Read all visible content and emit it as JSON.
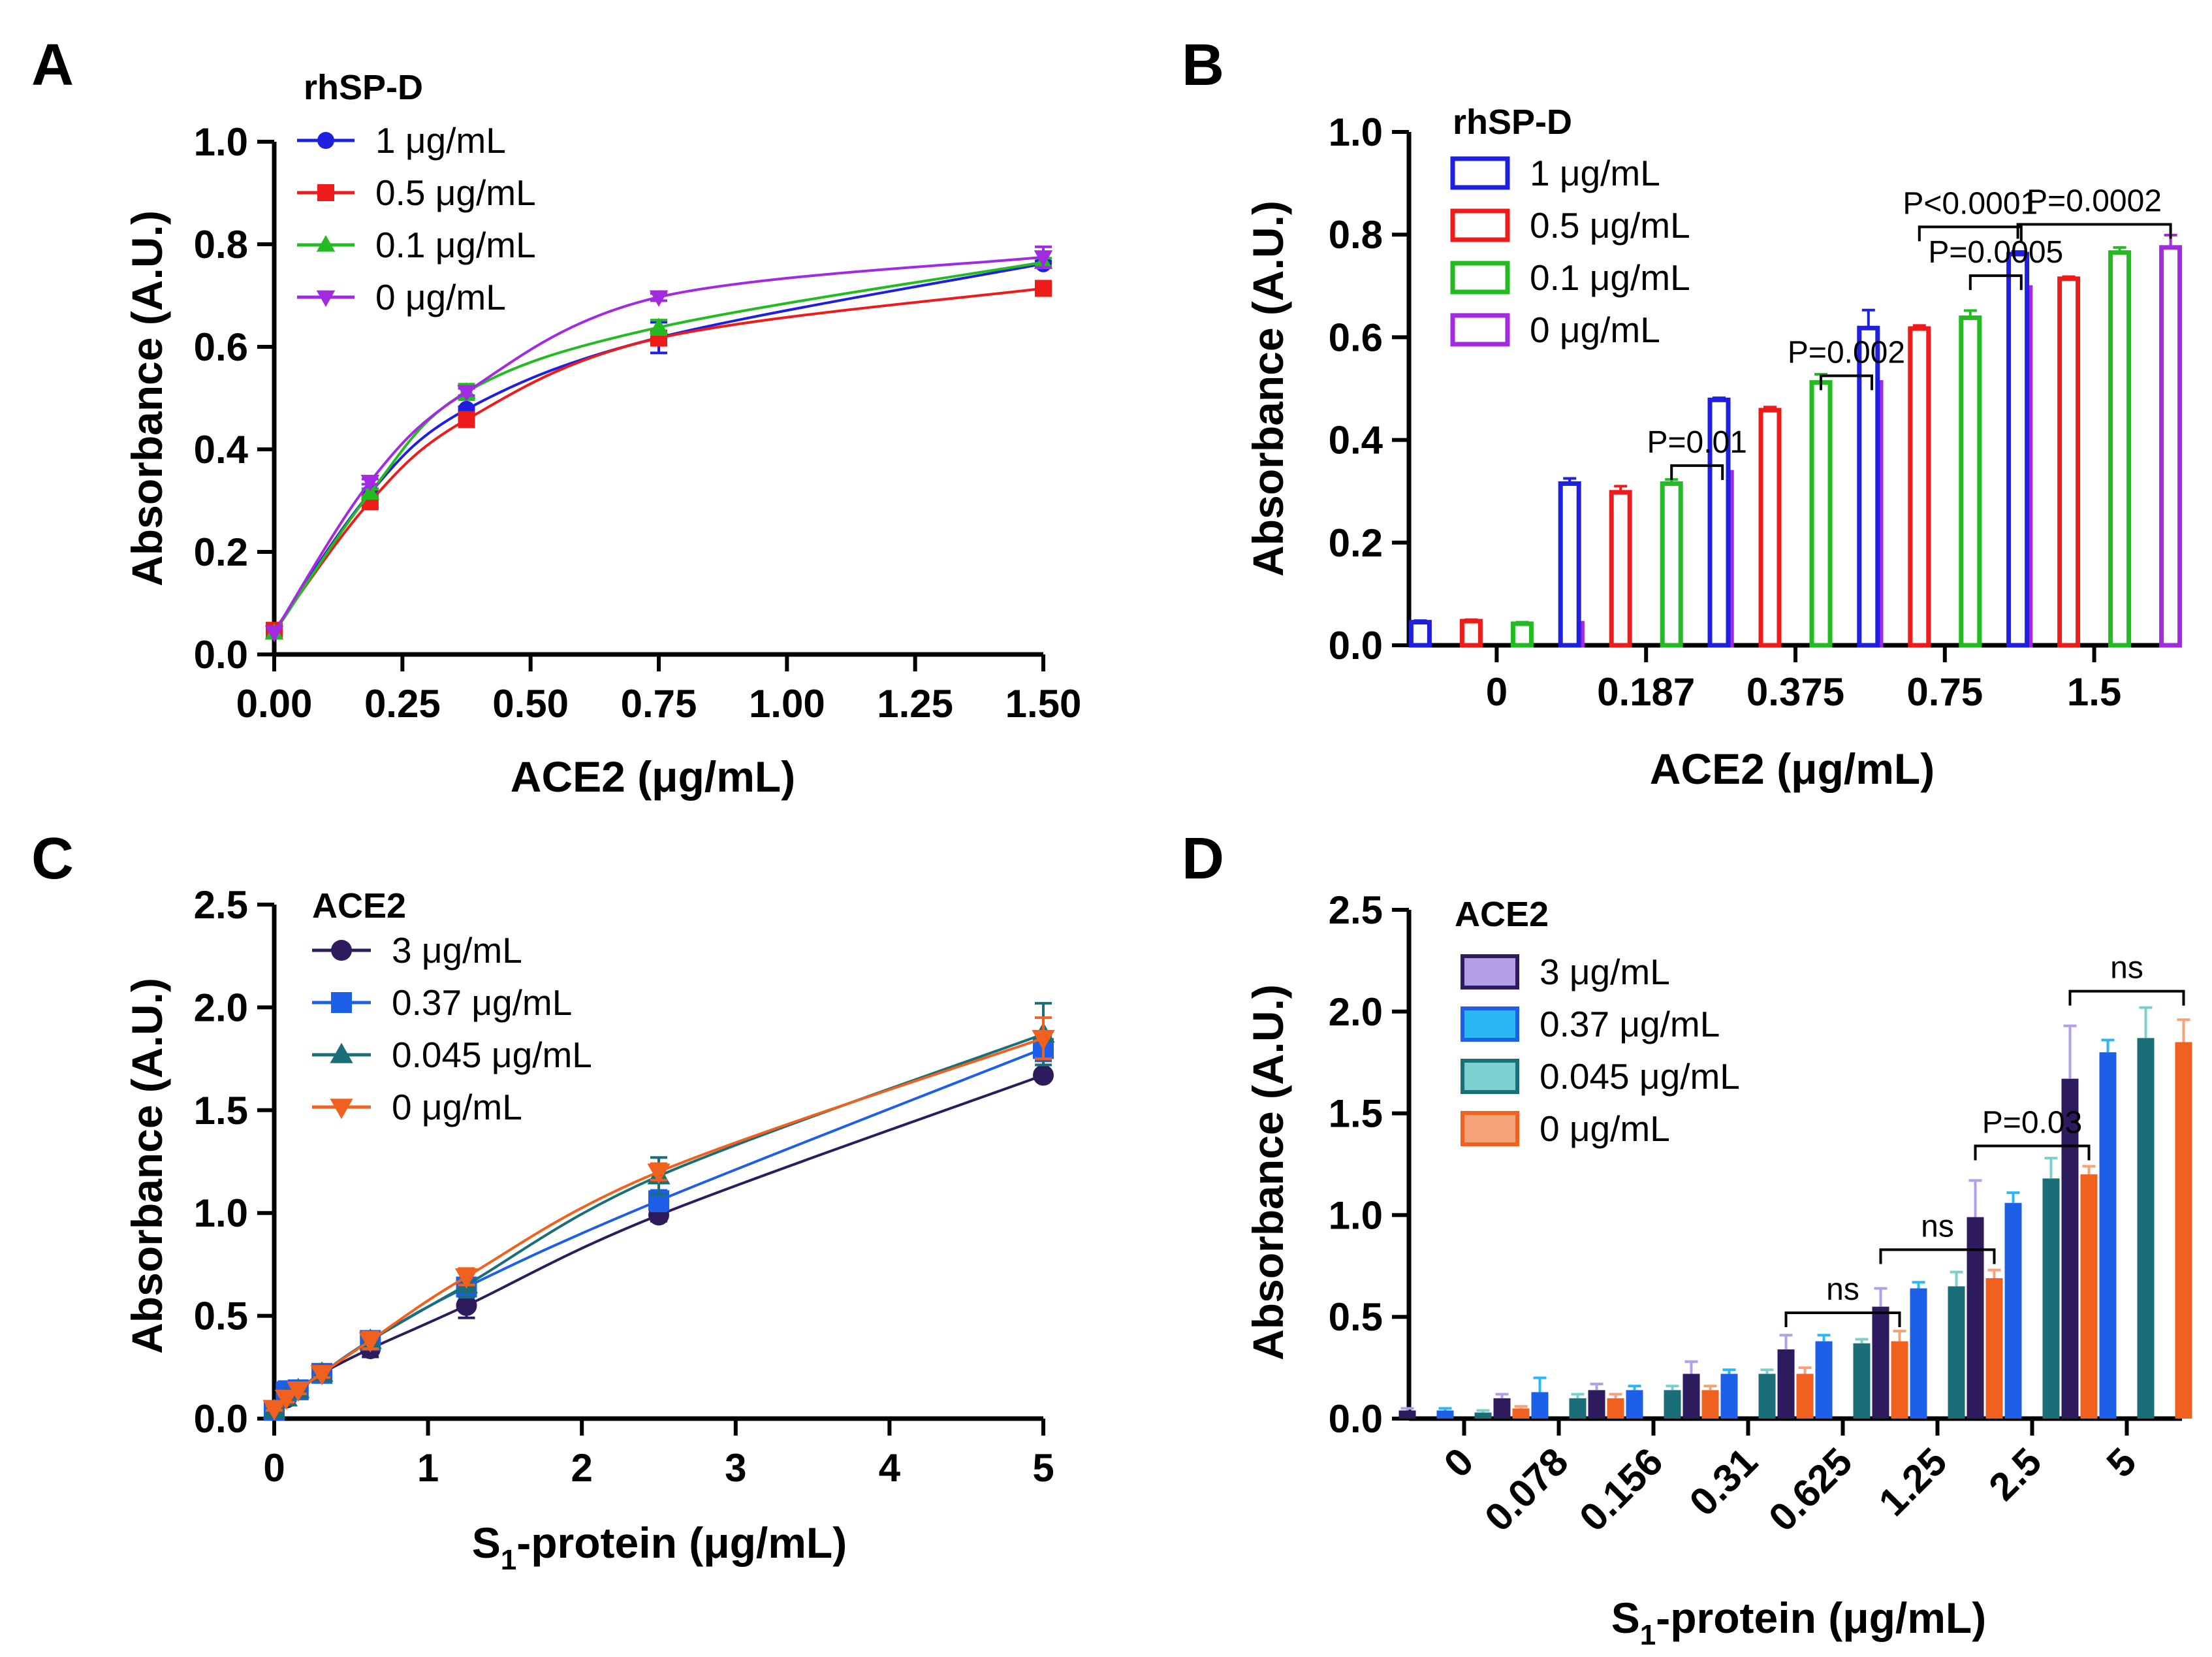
{
  "panels": {
    "A": {
      "label": "A",
      "legend_title": "rhSP-D"
    },
    "B": {
      "label": "B",
      "legend_title": "rhSP-D"
    },
    "C": {
      "label": "C",
      "legend_title": "ACE2"
    },
    "D": {
      "label": "D",
      "legend_title": "ACE2"
    }
  },
  "colors": {
    "A": [
      "#1f1fe0",
      "#ee1b1b",
      "#22bb22",
      "#a22ae0"
    ],
    "C": [
      "#2d1b5e",
      "#1e5fe8",
      "#1a6e78",
      "#f0601e"
    ],
    "D_dark": [
      "#2d1b5e",
      "#1e5fe8",
      "#1a6e78",
      "#f0601e"
    ],
    "D_light": [
      "#b39ee8",
      "#2ab8f5",
      "#7ccfcf",
      "#f5a27a"
    ]
  },
  "chart_data": [
    {
      "panel": "A",
      "type": "line",
      "xlabel": "ACE2 (μg/mL)",
      "ylabel": "Absorbance (A.U.)",
      "xlim": [
        0,
        1.5
      ],
      "ylim": [
        0,
        1.0
      ],
      "xticks": [
        "0.00",
        "0.25",
        "0.50",
        "0.75",
        "1.00",
        "1.25",
        "1.50"
      ],
      "yticks": [
        "0.0",
        "0.2",
        "0.4",
        "0.6",
        "0.8",
        "1.0"
      ],
      "x": [
        0,
        0.187,
        0.375,
        0.75,
        1.5
      ],
      "series": [
        {
          "name": "1 μg/mL",
          "marker": "circle",
          "values": [
            0.045,
            0.315,
            0.478,
            0.618,
            0.762
          ],
          "errors": [
            0.003,
            0.008,
            0.005,
            0.03,
            0.005
          ]
        },
        {
          "name": "0.5 μg/mL",
          "marker": "square",
          "values": [
            0.047,
            0.298,
            0.458,
            0.617,
            0.714
          ],
          "errors": [
            0.003,
            0.01,
            0.006,
            0.006,
            0.004
          ]
        },
        {
          "name": "0.1 μg/mL",
          "marker": "triangle-up",
          "values": [
            0.042,
            0.315,
            0.512,
            0.638,
            0.765
          ],
          "errors": [
            0.003,
            0.007,
            0.015,
            0.014,
            0.008
          ]
        },
        {
          "name": "0 μg/mL",
          "marker": "triangle-down",
          "values": [
            0.043,
            0.337,
            0.512,
            0.697,
            0.775
          ],
          "errors": [
            0.003,
            0.005,
            0.007,
            0.007,
            0.02
          ]
        }
      ]
    },
    {
      "panel": "B",
      "type": "bar",
      "xlabel": "ACE2 (μg/mL)",
      "ylabel": "Absorbance (A.U.)",
      "ylim": [
        0,
        1.0
      ],
      "yticks": [
        "0.0",
        "0.2",
        "0.4",
        "0.6",
        "0.8",
        "1.0"
      ],
      "categories": [
        "0",
        "0.187",
        "0.375",
        "0.75",
        "1.5"
      ],
      "series": [
        {
          "name": "1 μg/mL",
          "values": [
            0.045,
            0.315,
            0.478,
            0.618,
            0.762
          ],
          "errors": [
            0.003,
            0.01,
            0.004,
            0.035,
            0.005
          ]
        },
        {
          "name": "0.5 μg/mL",
          "values": [
            0.047,
            0.298,
            0.458,
            0.617,
            0.714
          ],
          "errors": [
            0.003,
            0.012,
            0.006,
            0.006,
            0.004
          ]
        },
        {
          "name": "0.1 μg/mL",
          "values": [
            0.042,
            0.315,
            0.512,
            0.638,
            0.765
          ],
          "errors": [
            0.003,
            0.008,
            0.016,
            0.014,
            0.01
          ]
        },
        {
          "name": "0 μg/mL",
          "values": [
            0.043,
            0.337,
            0.512,
            0.697,
            0.775
          ],
          "errors": [
            0.003,
            0.005,
            0.008,
            0.008,
            0.024
          ]
        }
      ],
      "annotations": [
        {
          "text": "P=0.01",
          "category": 1,
          "from": 2,
          "to": 3,
          "y": 0.35
        },
        {
          "text": "P=0.002",
          "category": 2,
          "from": 2,
          "to": 3,
          "y": 0.525
        },
        {
          "text": "P=0.0005",
          "category": 3,
          "from": 2,
          "to": 3,
          "y": 0.72
        },
        {
          "text": "P<0.0001",
          "category": 3,
          "from": 1,
          "to": 3,
          "y": 0.815
        },
        {
          "text": "P=0.0002",
          "category": 4,
          "from": 0,
          "to": 3,
          "y": 0.82
        }
      ]
    },
    {
      "panel": "C",
      "type": "line",
      "xlabel": "S1-protein (μg/mL)",
      "xlabel_main": "S",
      "xlabel_sub": "1",
      "xlabel_rest": "-protein (μg/mL)",
      "ylabel": "Absorbance (A.U.)",
      "xlim": [
        0,
        5
      ],
      "ylim": [
        0,
        2.5
      ],
      "xticks": [
        "0",
        "1",
        "2",
        "3",
        "4",
        "5"
      ],
      "yticks": [
        "0.0",
        "0.5",
        "1.0",
        "1.5",
        "2.0",
        "2.5"
      ],
      "x": [
        0,
        0.078,
        0.156,
        0.31,
        0.625,
        1.25,
        2.5,
        5
      ],
      "series": [
        {
          "name": "3 μg/mL",
          "marker": "circle",
          "values": [
            0.04,
            0.1,
            0.14,
            0.22,
            0.34,
            0.55,
            0.99,
            1.67
          ],
          "errors": [
            0.01,
            0.02,
            0.02,
            0.03,
            0.04,
            0.06,
            0.03,
            0.02
          ]
        },
        {
          "name": "0.37 μg/mL",
          "marker": "square",
          "values": [
            0.04,
            0.13,
            0.14,
            0.22,
            0.38,
            0.64,
            1.06,
            1.8
          ],
          "errors": [
            0.01,
            0.05,
            0.02,
            0.02,
            0.03,
            0.04,
            0.05,
            0.06
          ]
        },
        {
          "name": "0.045 μg/mL",
          "marker": "triangle-up",
          "values": [
            0.04,
            0.1,
            0.14,
            0.22,
            0.38,
            0.65,
            1.18,
            1.87
          ],
          "errors": [
            0.01,
            0.02,
            0.02,
            0.02,
            0.02,
            0.06,
            0.09,
            0.15
          ]
        },
        {
          "name": "0 μg/mL",
          "marker": "triangle-down",
          "values": [
            0.05,
            0.1,
            0.14,
            0.22,
            0.38,
            0.69,
            1.2,
            1.85
          ],
          "errors": [
            0.01,
            0.02,
            0.02,
            0.02,
            0.04,
            0.04,
            0.04,
            0.1
          ]
        }
      ]
    },
    {
      "panel": "D",
      "type": "bar",
      "xlabel": "S1-protein (μg/mL)",
      "xlabel_main": "S",
      "xlabel_sub": "1",
      "xlabel_rest": "-protein (μg/mL)",
      "ylabel": "Absorbance (A.U.)",
      "ylim": [
        0,
        2.5
      ],
      "yticks": [
        "0.0",
        "0.5",
        "1.0",
        "1.5",
        "2.0",
        "2.5"
      ],
      "categories": [
        "0",
        "0.078",
        "0.156",
        "0.31",
        "0.625",
        "1.25",
        "2.5",
        "5"
      ],
      "series": [
        {
          "name": "3 μg/mL",
          "values": [
            0.04,
            0.1,
            0.14,
            0.22,
            0.34,
            0.55,
            0.99,
            1.67
          ],
          "errors": [
            0.01,
            0.02,
            0.03,
            0.06,
            0.07,
            0.09,
            0.18,
            0.26
          ]
        },
        {
          "name": "0.37 μg/mL",
          "values": [
            0.04,
            0.13,
            0.14,
            0.22,
            0.38,
            0.64,
            1.06,
            1.8
          ],
          "errors": [
            0.01,
            0.07,
            0.02,
            0.02,
            0.03,
            0.03,
            0.05,
            0.06
          ]
        },
        {
          "name": "0.045 μg/mL",
          "values": [
            0.03,
            0.1,
            0.14,
            0.22,
            0.37,
            0.65,
            1.18,
            1.87
          ],
          "errors": [
            0.01,
            0.02,
            0.02,
            0.02,
            0.02,
            0.07,
            0.1,
            0.15
          ]
        },
        {
          "name": "0 μg/mL",
          "values": [
            0.05,
            0.1,
            0.14,
            0.22,
            0.38,
            0.69,
            1.2,
            1.85
          ],
          "errors": [
            0.01,
            0.02,
            0.02,
            0.03,
            0.05,
            0.04,
            0.04,
            0.11
          ]
        }
      ],
      "annotations": [
        {
          "text": "ns",
          "category": 4,
          "from": 0,
          "to": 3,
          "y": 0.52
        },
        {
          "text": "ns",
          "category": 5,
          "from": 0,
          "to": 3,
          "y": 0.83
        },
        {
          "text": "P=0.03",
          "category": 6,
          "from": 0,
          "to": 3,
          "y": 1.34
        },
        {
          "text": "ns",
          "category": 7,
          "from": 0,
          "to": 3,
          "y": 2.1
        }
      ]
    }
  ]
}
